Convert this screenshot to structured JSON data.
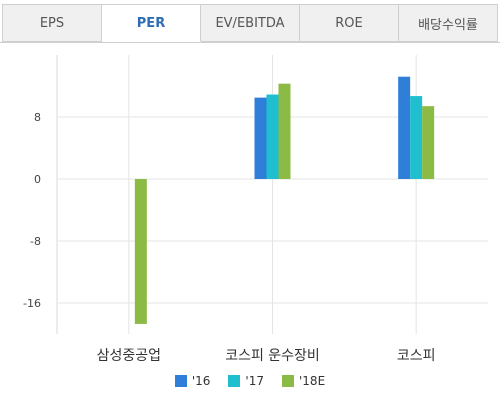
{
  "tabs": [
    {
      "label": "EPS",
      "active": false
    },
    {
      "label": "PER",
      "active": true
    },
    {
      "label": "EV/EBITDA",
      "active": false
    },
    {
      "label": "ROE",
      "active": false
    },
    {
      "label": "배당수익률",
      "active": false
    }
  ],
  "chart_data": {
    "type": "bar",
    "categories": [
      "삼성중공업",
      "코스피 운수장비",
      "코스피"
    ],
    "series": [
      {
        "name": "'16",
        "color": "#2f7ed8",
        "values": [
          null,
          10.5,
          13.2
        ]
      },
      {
        "name": "'17",
        "color": "#1fbfd0",
        "values": [
          null,
          10.9,
          10.7
        ]
      },
      {
        "name": "'18E",
        "color": "#8bbb44",
        "values": [
          -18.7,
          12.3,
          9.4
        ]
      }
    ],
    "yticks": [
      -16,
      -8,
      0,
      8
    ],
    "ylim": [
      -20,
      16
    ],
    "grid": true,
    "legend": "bottom-center"
  }
}
